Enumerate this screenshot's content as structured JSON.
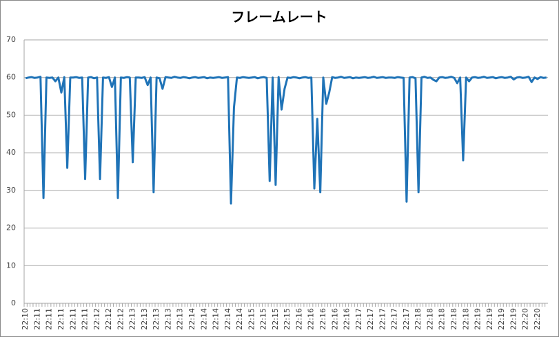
{
  "chart_data": {
    "type": "line",
    "title": "フレームレート",
    "categories": [
      "22:10",
      null,
      null,
      null,
      "22:11",
      null,
      null,
      null,
      "22:11",
      null,
      null,
      null,
      "22:11",
      null,
      null,
      null,
      "22:11",
      null,
      null,
      null,
      "22:11",
      null,
      null,
      null,
      "22:12",
      null,
      null,
      null,
      "22:12",
      null,
      null,
      null,
      "22:12",
      null,
      null,
      null,
      "22:13",
      null,
      null,
      null,
      "22:13",
      null,
      null,
      null,
      "22:13",
      null,
      null,
      null,
      "22:13",
      null,
      null,
      null,
      "22:13",
      null,
      null,
      null,
      "22:14",
      null,
      null,
      null,
      "22:14",
      null,
      null,
      null,
      "22:14",
      null,
      null,
      null,
      "22:14",
      null,
      null,
      null,
      "22:14",
      null,
      null,
      null,
      "22:15",
      null,
      null,
      null,
      "22:15",
      null,
      null,
      null,
      "22:15",
      null,
      null,
      null,
      "22:15",
      null,
      null,
      null,
      "22:16",
      null,
      null,
      null,
      "22:16",
      null,
      null,
      null,
      "22:16",
      null,
      null,
      null,
      "22:16",
      null,
      null,
      null,
      "22:16",
      null,
      null,
      null,
      "22:17",
      null,
      null,
      null,
      "22:17",
      null,
      null,
      null,
      "22:17",
      null,
      null,
      null,
      "22:17",
      null,
      null,
      null,
      "22:17",
      null,
      null,
      null,
      "22:18",
      null,
      null,
      null,
      "22:18",
      null,
      null,
      null,
      "22:18",
      null,
      null,
      null,
      "22:18",
      null,
      null,
      null,
      "22:18",
      null,
      null,
      null,
      "22:19",
      null,
      null,
      null,
      "22:19",
      null,
      null,
      null,
      "22:19",
      null,
      null,
      null,
      "22:19",
      null,
      null,
      null,
      "22:20",
      null,
      null,
      null,
      "22:20",
      null,
      null,
      null
    ],
    "values": [
      59.8,
      60,
      60.1,
      59.9,
      60,
      60.2,
      28,
      60,
      59.9,
      60,
      59,
      60,
      56,
      60.1,
      36,
      60,
      60,
      60.1,
      59.9,
      60,
      33,
      60,
      60.1,
      59.8,
      60,
      33,
      60,
      59.9,
      60.1,
      57.5,
      60,
      28,
      60,
      59.9,
      60.1,
      60,
      37.5,
      60,
      60,
      59.9,
      60.1,
      58,
      60,
      29.5,
      60,
      59.8,
      57,
      60.1,
      60,
      59.9,
      60.2,
      60,
      59.9,
      60.1,
      60,
      59.8,
      60,
      60.1,
      59.9,
      60,
      60.1,
      59.8,
      60,
      59.9,
      60,
      60.1,
      59.9,
      60,
      60.1,
      26.5,
      52,
      60,
      59.9,
      60.1,
      60,
      59.9,
      60,
      60.1,
      59.8,
      60,
      60.1,
      59.9,
      32.5,
      60,
      31.5,
      60.1,
      51.5,
      57,
      60,
      59.9,
      60.1,
      60,
      59.8,
      60,
      60.1,
      59.9,
      60,
      30.5,
      49,
      29.5,
      60,
      53,
      56,
      60.1,
      59.9,
      60,
      60.2,
      59.9,
      60,
      60.1,
      59.8,
      60,
      59.9,
      60,
      60.1,
      59.9,
      60,
      60.2,
      59.9,
      60,
      60.1,
      59.9,
      60,
      60,
      59.9,
      60.1,
      60,
      59.9,
      27,
      60,
      60.1,
      59.8,
      29.5,
      60,
      60.2,
      59.9,
      60,
      59.4,
      59,
      60,
      60.1,
      59.9,
      60,
      60.2,
      59.9,
      58.5,
      60,
      38,
      60,
      59,
      60,
      60.1,
      59.9,
      60,
      60.2,
      59.9,
      60,
      60.1,
      59.8,
      60,
      60.1,
      59.9,
      60,
      60.2,
      59.5,
      60,
      60.1,
      59.9,
      60,
      60.2,
      58.8,
      60,
      59.6,
      60.1,
      59.9,
      60
    ],
    "color": "#1f73b7",
    "ylim": [
      0,
      70
    ],
    "yticks": [
      0,
      10,
      20,
      30,
      40,
      50,
      60,
      70
    ],
    "grid": true
  }
}
